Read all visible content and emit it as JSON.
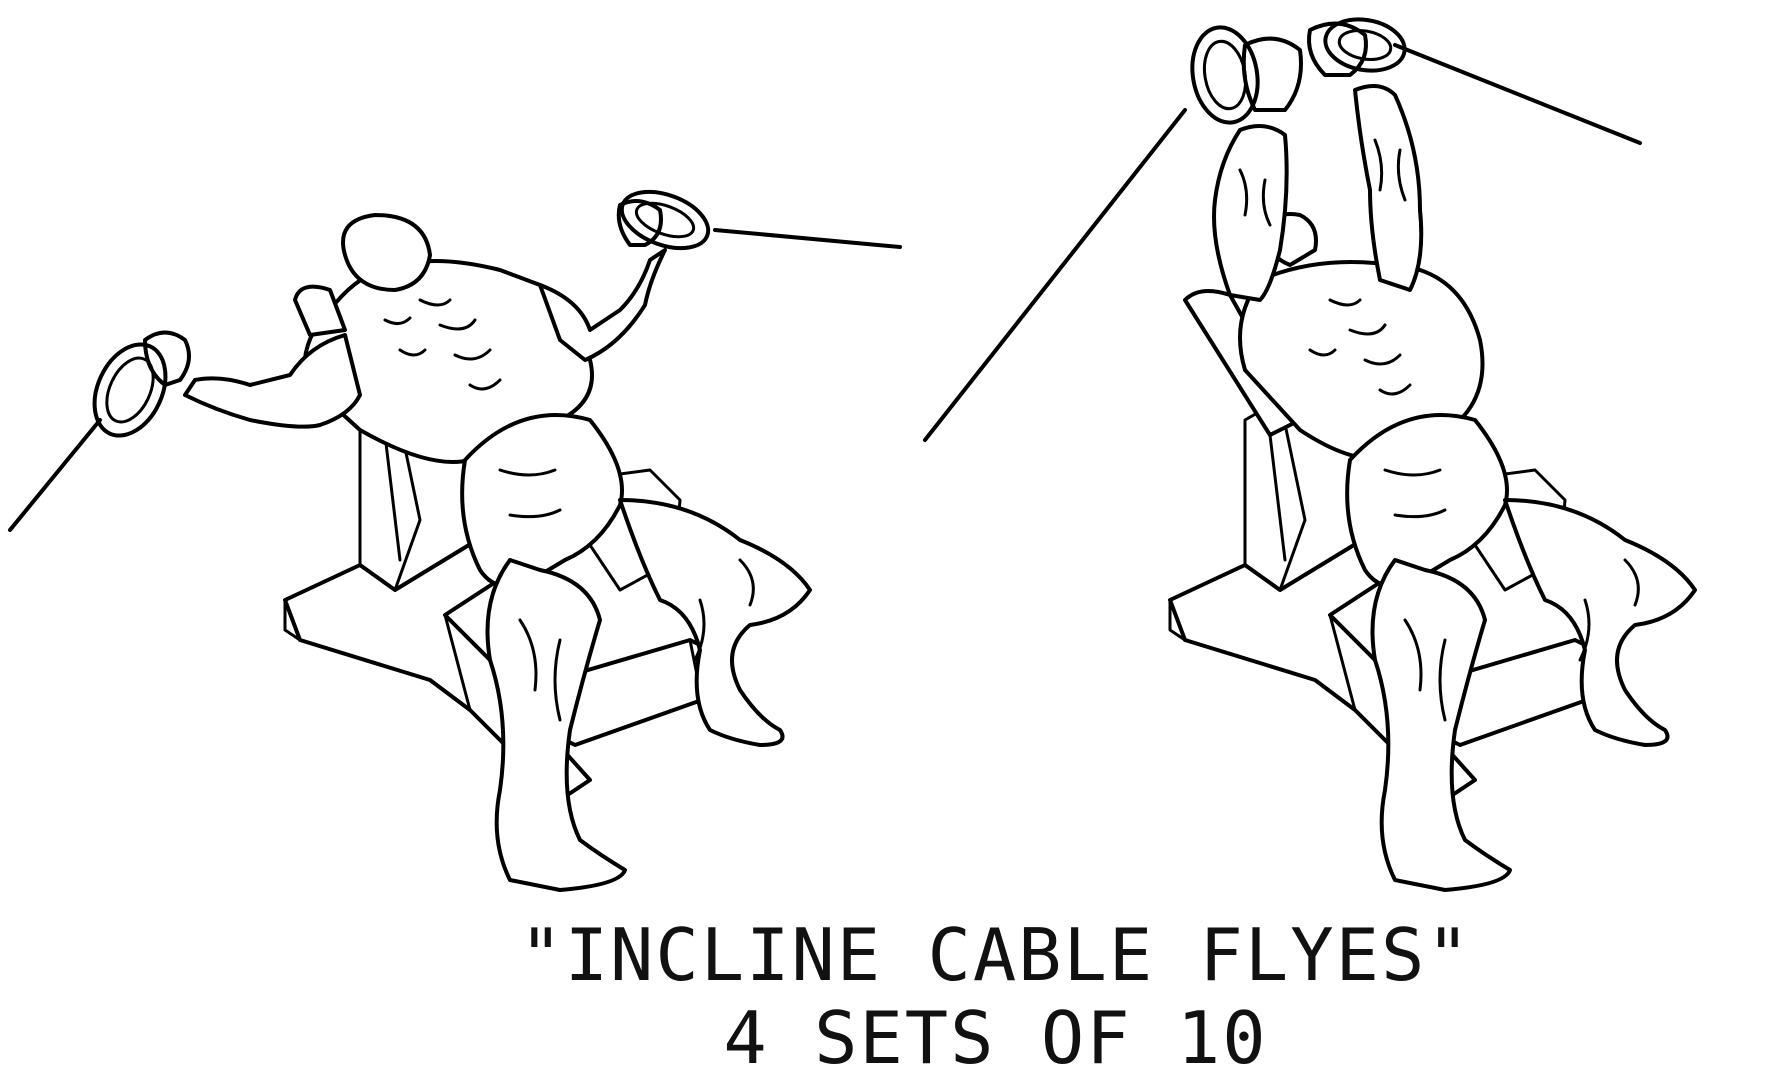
{
  "caption": {
    "title": "\"INCLINE CABLE FLYES\"",
    "sets": "4 SETS OF 10"
  },
  "figures": [
    {
      "pose": "start-arms-out",
      "icon": "incline-cable-fly-start-illustration"
    },
    {
      "pose": "finish-arms-up",
      "icon": "incline-cable-fly-finish-illustration"
    }
  ],
  "colors": {
    "ink": "#000000",
    "background": "#ffffff"
  }
}
